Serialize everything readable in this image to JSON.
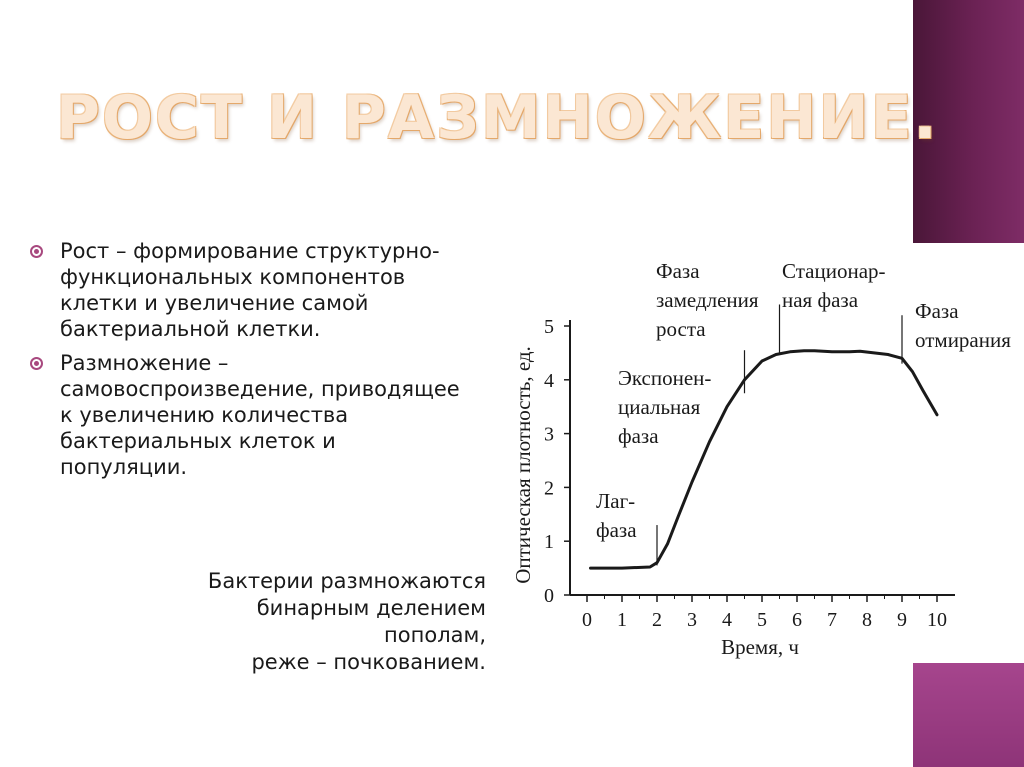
{
  "title": "РОСТ И РАЗМНОЖЕНИЕ.",
  "bullets": [
    "Рост – формирование структурно-функциональных компонентов клетки и увеличение самой бактериальной клетки.",
    "Размножение – самовоспроизведение, приводящее к увеличению количества бактериальных клеток и популяции."
  ],
  "note_lines": [
    "Бактерии размножаются",
    "бинарным делением пополам,",
    "реже – почкованием."
  ],
  "colors": {
    "accent_bar": "#6b2254",
    "accent_bar_light": "#a6458d",
    "bullet": "#a8497f",
    "title": "#f2c89c"
  },
  "chart_data": {
    "type": "line",
    "xlabel": "Время, ч",
    "ylabel": "Оптическая плотность, ед.",
    "xlim": [
      0,
      10
    ],
    "ylim": [
      0,
      5
    ],
    "x_ticks": [
      "0",
      "1",
      "2",
      "3",
      "4",
      "5",
      "6",
      "7",
      "8",
      "9",
      "10"
    ],
    "y_ticks": [
      "0",
      "1",
      "2",
      "3",
      "4",
      "5"
    ],
    "series": [
      {
        "x": [
          0.1,
          1.0,
          1.8,
          2.0,
          2.3,
          2.6,
          3.0,
          3.5,
          4.0,
          4.5,
          5.0,
          5.4,
          5.8,
          6.2,
          6.5,
          7.0,
          7.5,
          7.8,
          8.2,
          8.6,
          9.0,
          9.3,
          9.6,
          10.0
        ],
        "y": [
          0.5,
          0.5,
          0.52,
          0.6,
          0.95,
          1.45,
          2.1,
          2.85,
          3.5,
          4.0,
          4.35,
          4.47,
          4.52,
          4.54,
          4.54,
          4.52,
          4.52,
          4.53,
          4.5,
          4.47,
          4.4,
          4.15,
          3.8,
          3.35
        ]
      }
    ],
    "phases": [
      {
        "lines": [
          "Лаг-",
          "фаза"
        ],
        "x": 2.0,
        "divider_y": [
          0.55,
          1.3
        ]
      },
      {
        "lines": [
          "Экспонен-",
          "циальная",
          "фаза"
        ],
        "x": 4.5,
        "divider_y": [
          3.75,
          4.55
        ]
      },
      {
        "lines": [
          "Фаза",
          "замедления",
          "роста"
        ],
        "x": 5.5,
        "divider_y": [
          4.5,
          5.4
        ]
      },
      {
        "lines": [
          "Стационар-",
          "ная фаза"
        ],
        "x": null
      },
      {
        "lines": [
          "Фаза",
          "отмирания"
        ],
        "x": 9.0,
        "divider_y": [
          4.3,
          5.2
        ]
      }
    ]
  }
}
